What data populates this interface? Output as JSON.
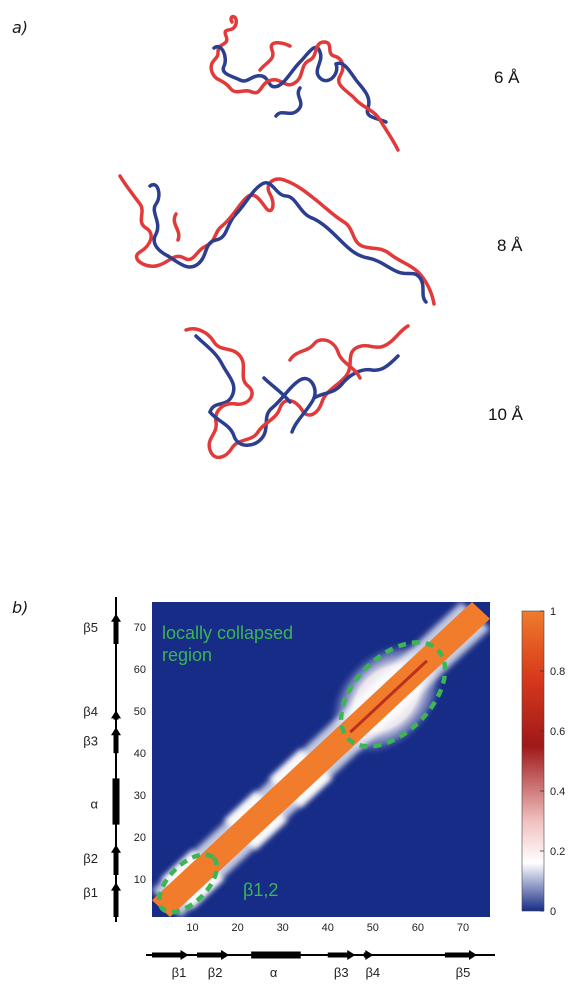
{
  "panel_a": {
    "label": "a)",
    "structures": [
      {
        "resolution": "6 Å"
      },
      {
        "resolution": "8 Å"
      },
      {
        "resolution": "10 Å"
      }
    ]
  },
  "panel_b": {
    "label": "b)",
    "annotation_top": [
      "locally collapsed",
      "region"
    ],
    "annotation_bottom": "β1,2"
  },
  "colors": {
    "chain_red": "#e23a3a",
    "chain_blue": "#2c3f8f",
    "map_background": "#172c87",
    "map_diagonal": "#f07c2c",
    "annotation_green": "#3cb554"
  },
  "chart_data": {
    "type": "heatmap",
    "title": "",
    "xlabel": "",
    "ylabel": "",
    "xlim": [
      1,
      76
    ],
    "ylim": [
      1,
      76
    ],
    "x_ticks": [
      10,
      20,
      30,
      40,
      50,
      60,
      70
    ],
    "y_ticks": [
      10,
      20,
      30,
      40,
      50,
      60,
      70
    ],
    "secondary_structure": [
      {
        "label": "β1",
        "start": 1,
        "end": 8,
        "type": "strand",
        "label_pos": 7
      },
      {
        "label": "β2",
        "start": 11,
        "end": 17,
        "type": "strand",
        "label_pos": 15
      },
      {
        "label": "α",
        "start": 23,
        "end": 34,
        "type": "helix",
        "label_pos": 28
      },
      {
        "label": "β3",
        "start": 40,
        "end": 45,
        "type": "strand",
        "label_pos": 43
      },
      {
        "label": "β4",
        "start": 48,
        "end": 49,
        "type": "strand",
        "label_pos": 50
      },
      {
        "label": "β5",
        "start": 66,
        "end": 72,
        "type": "strand",
        "label_pos": 70
      }
    ],
    "colorbar": {
      "min": 0,
      "max": 1,
      "ticks": [
        0,
        0.2,
        0.4,
        0.6,
        0.8,
        1
      ],
      "tick_labels": [
        "0",
        "0.2",
        "0.4",
        "0.6",
        "0.8",
        "1"
      ],
      "colors": [
        "#172c87",
        "#ffffff",
        "#e8a0a0",
        "#a01818",
        "#d83a1c",
        "#f07c2c"
      ]
    },
    "diagonal_band_halfwidth": 4,
    "features": [
      {
        "name": "bump",
        "center": 10,
        "extent": 7
      },
      {
        "name": "bump",
        "center": 24,
        "extent": 7
      },
      {
        "name": "bump",
        "center": 34,
        "extent": 7
      },
      {
        "name": "collapsed-region",
        "center": 53,
        "extent": 12
      }
    ],
    "ellipses": [
      {
        "label": "locally collapsed region",
        "cx": 54.5,
        "cy": 54,
        "rx": 14,
        "ry": 9
      },
      {
        "label": "β1,2",
        "cx": 9,
        "cy": 9,
        "rx": 8,
        "ry": 4.5
      }
    ]
  }
}
